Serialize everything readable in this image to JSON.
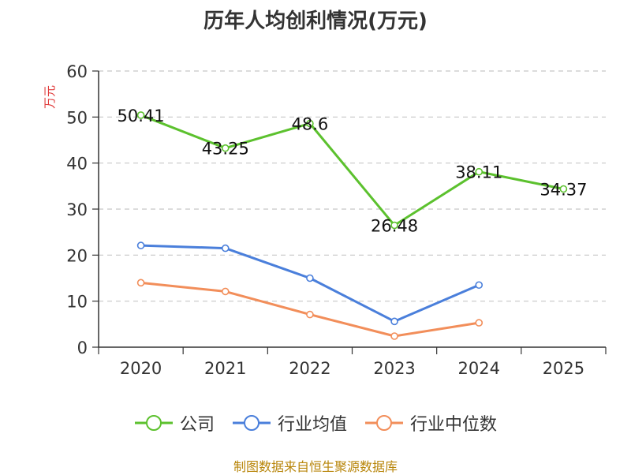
{
  "chart_data": {
    "type": "line",
    "title": "历年人均创利情况(万元)",
    "ylabel": "万元",
    "categories": [
      "2020",
      "2021",
      "2022",
      "2023",
      "2024",
      "2025"
    ],
    "ylim": [
      0,
      60
    ],
    "yticks": [
      0,
      10,
      20,
      30,
      40,
      50,
      60
    ],
    "grid": true,
    "legend_position": "bottom",
    "series": [
      {
        "name": "公司",
        "color": "#5cc12e",
        "values": [
          50.41,
          43.25,
          48.6,
          26.48,
          38.11,
          34.37
        ],
        "labels": [
          "50.41",
          "43.25",
          "48.6",
          "26.48",
          "38.11",
          "34.37"
        ]
      },
      {
        "name": "行业均值",
        "color": "#4a7fdb",
        "values": [
          22.1,
          21.5,
          15.0,
          5.6,
          13.5,
          null
        ]
      },
      {
        "name": "行业中位数",
        "color": "#f28e5a",
        "values": [
          14.0,
          12.1,
          7.1,
          2.4,
          5.3,
          null
        ]
      }
    ]
  },
  "source": "制图数据来自恒生聚源数据库"
}
